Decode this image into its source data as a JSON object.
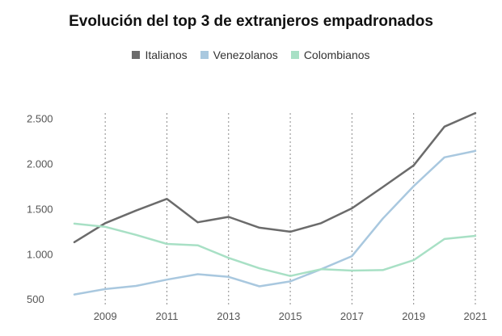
{
  "chart_data": {
    "type": "line",
    "title": "Evolución del top 3 de extranjeros empadronados",
    "xlabel": "",
    "ylabel": "",
    "x": [
      2008,
      2009,
      2010,
      2011,
      2012,
      2013,
      2014,
      2015,
      2016,
      2017,
      2018,
      2019,
      2020,
      2021
    ],
    "x_tick_labels": [
      "2009",
      "2011",
      "2013",
      "2015",
      "2017",
      "2019",
      "2021"
    ],
    "x_tick_values": [
      2009,
      2011,
      2013,
      2015,
      2017,
      2019,
      2021
    ],
    "y_tick_labels": [
      "500",
      "1.000",
      "1.500",
      "2.000",
      "2.500"
    ],
    "y_tick_values": [
      500,
      1000,
      1500,
      2000,
      2500
    ],
    "xlim": [
      2008,
      2021
    ],
    "ylim": [
      430,
      2560
    ],
    "series": [
      {
        "name": "Italianos",
        "color": "#6b6b6b",
        "values": [
          1130,
          1340,
          1480,
          1610,
          1350,
          1410,
          1290,
          1245,
          1340,
          1505,
          1740,
          1980,
          2410,
          2560
        ]
      },
      {
        "name": "Venezolanos",
        "color": "#a9c8df",
        "values": [
          550,
          610,
          645,
          715,
          775,
          745,
          640,
          695,
          830,
          975,
          1390,
          1750,
          2070,
          2140
        ]
      },
      {
        "name": "Colombianos",
        "color": "#a8e0c5",
        "values": [
          1335,
          1300,
          1210,
          1110,
          1095,
          955,
          840,
          755,
          830,
          815,
          820,
          930,
          1165,
          1200
        ]
      }
    ]
  }
}
